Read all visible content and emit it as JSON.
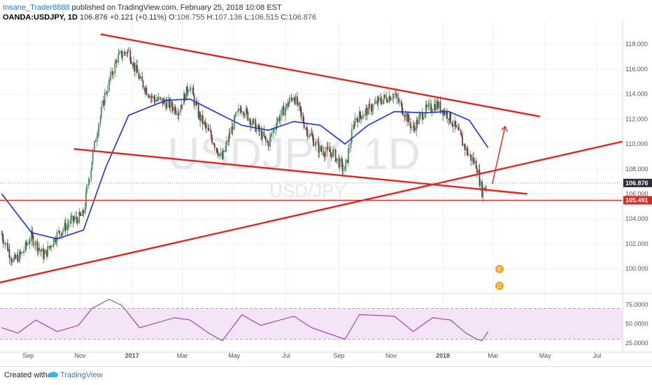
{
  "header": {
    "author": "Insane_Trader8888",
    "published": "published on TradingView.com, February 25, 2018 10:08 EST",
    "symbol": "OANDA:USDJPY, 1D",
    "last": "106.876",
    "change": "+0.121 (+0.11%)",
    "ohlc_labels": [
      "O:",
      "H:",
      "L:",
      "C:"
    ],
    "ohlc_values": [
      "106.755",
      "107.136",
      "106.515",
      "106.876"
    ]
  },
  "watermark": {
    "main": "USDJPY, 1D",
    "sub": "USD/JPY"
  },
  "footer": {
    "created": "Created with",
    "brand": "TradingView"
  },
  "colors": {
    "up": "#4a8f5c",
    "down": "#6b3a3a",
    "ma": "#1f2fd6",
    "trend": "#e5241f",
    "rsi": "#9c27b0",
    "rsi_band": "#f3e5f5",
    "price_tag": "#2a2e39",
    "support_tag": "#e5241f"
  },
  "chart_data": [
    {
      "type": "line",
      "title": "OANDA:USDJPY, 1D",
      "x_tick_labels": [
        "Sep",
        "Nov",
        "2017",
        "Mar",
        "May",
        "Jul",
        "Sep",
        "Nov",
        "2018",
        "Mar",
        "May",
        "Jul"
      ],
      "y_tick_labels": [
        "100.000",
        "102.000",
        "104.000",
        "106.000",
        "108.000",
        "110.000",
        "112.000",
        "114.000",
        "116.000",
        "118.000"
      ],
      "ylim": [
        98.3,
        119.3
      ],
      "price_labels": {
        "last": "106.876",
        "support": "105.491"
      },
      "series": [
        {
          "kind": "close",
          "dates": [
            "2016-08-01",
            "2016-08-15",
            "2016-08-25",
            "2016-09-05",
            "2016-09-20",
            "2016-10-05",
            "2016-10-20",
            "2016-11-05",
            "2016-11-10",
            "2016-11-20",
            "2016-12-01",
            "2016-12-15",
            "2016-12-28",
            "2017-01-10",
            "2017-01-25",
            "2017-02-10",
            "2017-02-25",
            "2017-03-10",
            "2017-03-20",
            "2017-04-05",
            "2017-04-17",
            "2017-05-01",
            "2017-05-10",
            "2017-05-25",
            "2017-06-10",
            "2017-06-20",
            "2017-07-10",
            "2017-07-25",
            "2017-08-10",
            "2017-08-25",
            "2017-09-08",
            "2017-09-20",
            "2017-10-05",
            "2017-10-20",
            "2017-11-05",
            "2017-11-15",
            "2017-11-27",
            "2017-12-10",
            "2017-12-25",
            "2018-01-08",
            "2018-01-20",
            "2018-01-31",
            "2018-02-10",
            "2018-02-16",
            "2018-02-23"
          ],
          "values": [
            102.8,
            100.6,
            101.2,
            102.6,
            101.0,
            102.7,
            103.7,
            104.3,
            106.5,
            110.6,
            114.0,
            116.9,
            117.5,
            115.2,
            113.7,
            113.3,
            112.7,
            114.8,
            112.4,
            110.5,
            108.8,
            111.8,
            113.0,
            111.5,
            110.0,
            111.8,
            113.9,
            111.2,
            109.5,
            109.3,
            107.8,
            112.0,
            112.7,
            113.5,
            114.0,
            112.8,
            111.2,
            112.6,
            113.2,
            112.3,
            110.8,
            109.2,
            108.3,
            106.2,
            106.876
          ]
        },
        {
          "kind": "sma",
          "name": "",
          "dates": [
            "2016-08-01",
            "2016-09-05",
            "2016-10-05",
            "2016-11-05",
            "2016-12-01",
            "2016-12-28",
            "2017-02-10",
            "2017-03-10",
            "2017-04-05",
            "2017-05-10",
            "2017-06-10",
            "2017-07-10",
            "2017-08-10",
            "2017-09-08",
            "2017-10-05",
            "2017-11-05",
            "2017-12-10",
            "2018-01-08",
            "2018-02-01",
            "2018-02-23"
          ],
          "values": [
            106.0,
            102.9,
            102.4,
            103.1,
            108.1,
            112.3,
            113.5,
            113.6,
            112.7,
            111.5,
            111.1,
            111.8,
            111.5,
            110.0,
            111.5,
            112.6,
            112.5,
            112.6,
            111.9,
            109.7
          ]
        }
      ],
      "trendlines": [
        {
          "from": [
            "2016-11-25",
            118.8
          ],
          "to": [
            "2018-04-25",
            112.2
          ]
        },
        {
          "from": [
            "2016-07-30",
            98.9
          ],
          "to": [
            "2018-07-31",
            110.2
          ]
        },
        {
          "from": [
            "2016-10-25",
            109.6
          ],
          "to": [
            "2018-04-10",
            106.0
          ]
        },
        {
          "from": [
            "2016-07-30",
            105.491
          ],
          "to": [
            "2018-07-31",
            105.491
          ]
        }
      ],
      "projection_arrow": {
        "from": [
          "2018-02-28",
          106.8
        ],
        "to": [
          "2018-03-15",
          111.4
        ]
      }
    },
    {
      "type": "line",
      "title": "RSI",
      "y_tick_labels": [
        "25.0000",
        "50.0000",
        "75.0000"
      ],
      "ylim": [
        15,
        85
      ],
      "bands": [
        30,
        70
      ],
      "series": [
        {
          "dates": [
            "2016-08-01",
            "2016-08-20",
            "2016-09-10",
            "2016-10-05",
            "2016-10-30",
            "2016-11-15",
            "2016-12-05",
            "2016-12-20",
            "2017-01-10",
            "2017-02-01",
            "2017-02-20",
            "2017-03-10",
            "2017-04-01",
            "2017-04-17",
            "2017-05-10",
            "2017-06-01",
            "2017-07-10",
            "2017-07-31",
            "2017-09-08",
            "2017-09-25",
            "2017-11-05",
            "2017-11-27",
            "2017-12-20",
            "2018-01-10",
            "2018-01-28",
            "2018-02-10",
            "2018-02-16",
            "2018-02-23"
          ],
          "values": [
            45,
            38,
            55,
            40,
            48,
            70,
            82,
            74,
            45,
            52,
            58,
            55,
            38,
            28,
            62,
            48,
            60,
            45,
            30,
            62,
            60,
            40,
            58,
            55,
            38,
            30,
            28,
            40
          ]
        }
      ]
    }
  ]
}
